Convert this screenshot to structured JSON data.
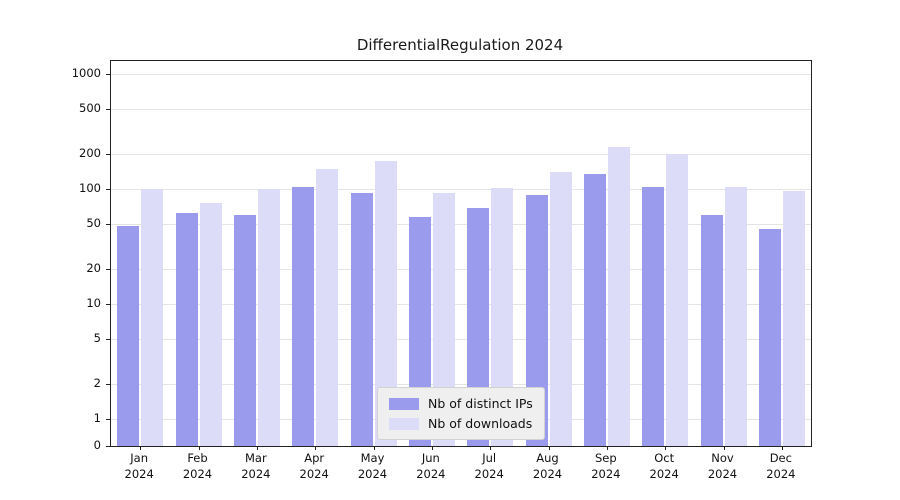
{
  "chart_data": {
    "type": "bar",
    "title": "DifferentialRegulation 2024",
    "categories": [
      "Jan 2024",
      "Feb 2024",
      "Mar 2024",
      "Apr 2024",
      "May 2024",
      "Jun 2024",
      "Jul 2024",
      "Aug 2024",
      "Sep 2024",
      "Oct 2024",
      "Nov 2024",
      "Dec 2024"
    ],
    "series": [
      {
        "name": "Nb of distinct IPs",
        "color": "#9b9bee",
        "values": [
          48,
          62,
          60,
          105,
          92,
          57,
          68,
          88,
          135,
          105,
          60,
          45
        ]
      },
      {
        "name": "Nb of downloads",
        "color": "#dcdcf9",
        "values": [
          100,
          75,
          100,
          150,
          175,
          93,
          102,
          140,
          230,
          203,
          105,
          97
        ]
      }
    ],
    "xlabel": "",
    "ylabel": "",
    "yscale": "symlog",
    "yticks": [
      0,
      1,
      2,
      5,
      10,
      20,
      50,
      100,
      200,
      500,
      1000
    ],
    "ylim": [
      0,
      1300
    ],
    "grid": true,
    "legend_position": "lower center"
  },
  "colors": {
    "grid": "#e4e4e4",
    "axis": "#222222",
    "legend_bg": "#efefef",
    "legend_border": "#d2d2d2"
  }
}
